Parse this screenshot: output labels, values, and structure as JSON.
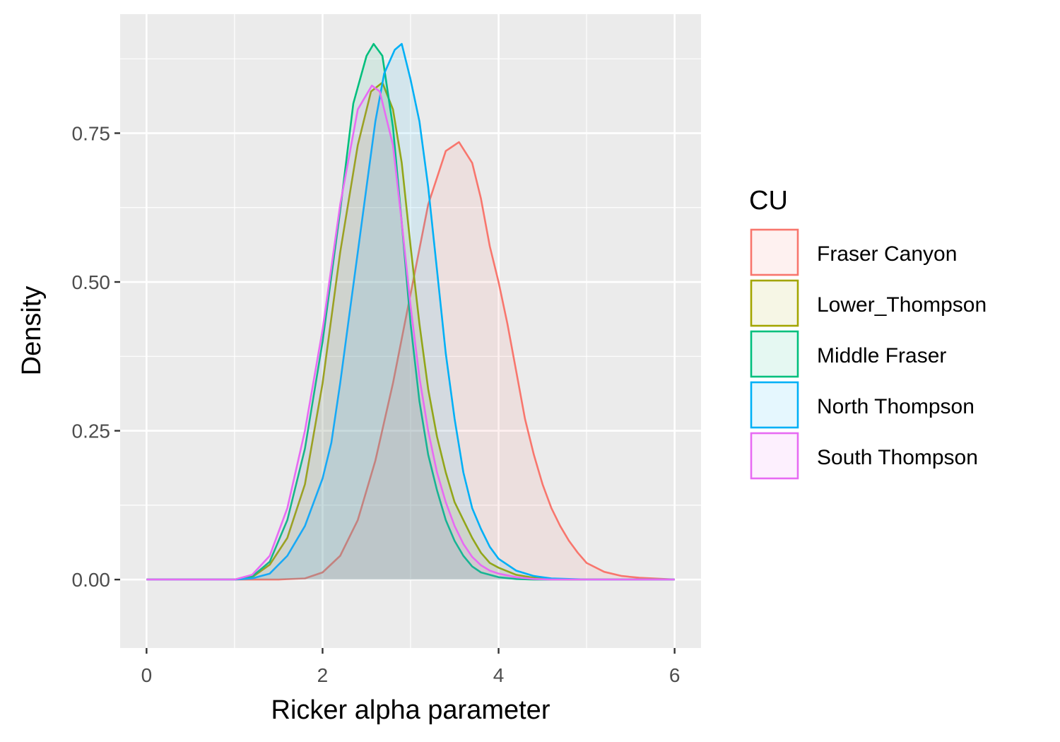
{
  "chart_data": {
    "type": "area",
    "title": "",
    "xlabel": "Ricker alpha parameter",
    "ylabel": "Density",
    "xlim": [
      -0.3,
      6.3
    ],
    "ylim": [
      -0.115,
      0.95
    ],
    "x_ticks": [
      0,
      2,
      4,
      6
    ],
    "x_tick_labels": [
      "0",
      "2",
      "4",
      "6"
    ],
    "y_ticks": [
      0,
      0.25,
      0.5,
      0.75
    ],
    "y_tick_labels": [
      "0.00",
      "0.25",
      "0.50",
      "0.75"
    ],
    "grid": true,
    "legend": {
      "title": "CU",
      "position": "right"
    },
    "series": [
      {
        "name": "Fraser Canyon",
        "color": "#F8766D",
        "points": [
          [
            0,
            0
          ],
          [
            1.5,
            0
          ],
          [
            1.8,
            0.002
          ],
          [
            2,
            0.012
          ],
          [
            2.2,
            0.04
          ],
          [
            2.4,
            0.1
          ],
          [
            2.6,
            0.2
          ],
          [
            2.8,
            0.33
          ],
          [
            3,
            0.48
          ],
          [
            3.2,
            0.63
          ],
          [
            3.4,
            0.72
          ],
          [
            3.55,
            0.735
          ],
          [
            3.7,
            0.7
          ],
          [
            3.8,
            0.64
          ],
          [
            3.9,
            0.56
          ],
          [
            4,
            0.5
          ],
          [
            4.1,
            0.43
          ],
          [
            4.2,
            0.35
          ],
          [
            4.3,
            0.27
          ],
          [
            4.4,
            0.21
          ],
          [
            4.5,
            0.16
          ],
          [
            4.6,
            0.12
          ],
          [
            4.7,
            0.09
          ],
          [
            4.8,
            0.065
          ],
          [
            4.9,
            0.045
          ],
          [
            5,
            0.028
          ],
          [
            5.2,
            0.013
          ],
          [
            5.4,
            0.006
          ],
          [
            5.6,
            0.003
          ],
          [
            6,
            0
          ]
        ]
      },
      {
        "name": "Lower_Thompson",
        "color": "#A3A500",
        "points": [
          [
            0,
            0
          ],
          [
            1,
            0
          ],
          [
            1.2,
            0.004
          ],
          [
            1.4,
            0.025
          ],
          [
            1.6,
            0.07
          ],
          [
            1.8,
            0.16
          ],
          [
            2,
            0.33
          ],
          [
            2.2,
            0.55
          ],
          [
            2.4,
            0.73
          ],
          [
            2.55,
            0.82
          ],
          [
            2.68,
            0.835
          ],
          [
            2.8,
            0.79
          ],
          [
            2.9,
            0.7
          ],
          [
            3,
            0.56
          ],
          [
            3.1,
            0.43
          ],
          [
            3.2,
            0.32
          ],
          [
            3.3,
            0.24
          ],
          [
            3.4,
            0.18
          ],
          [
            3.5,
            0.13
          ],
          [
            3.6,
            0.1
          ],
          [
            3.7,
            0.07
          ],
          [
            3.8,
            0.045
          ],
          [
            3.9,
            0.028
          ],
          [
            4,
            0.02
          ],
          [
            4.2,
            0.008
          ],
          [
            4.4,
            0.003
          ],
          [
            4.6,
            0.001
          ],
          [
            4.8,
            0
          ],
          [
            6,
            0
          ]
        ]
      },
      {
        "name": "Middle Fraser",
        "color": "#00BF7D",
        "points": [
          [
            0,
            0
          ],
          [
            1,
            0
          ],
          [
            1.2,
            0.005
          ],
          [
            1.4,
            0.03
          ],
          [
            1.6,
            0.1
          ],
          [
            1.8,
            0.22
          ],
          [
            2,
            0.4
          ],
          [
            2.2,
            0.62
          ],
          [
            2.35,
            0.8
          ],
          [
            2.5,
            0.88
          ],
          [
            2.58,
            0.9
          ],
          [
            2.68,
            0.88
          ],
          [
            2.8,
            0.76
          ],
          [
            2.9,
            0.6
          ],
          [
            3,
            0.43
          ],
          [
            3.1,
            0.3
          ],
          [
            3.2,
            0.21
          ],
          [
            3.3,
            0.15
          ],
          [
            3.4,
            0.1
          ],
          [
            3.5,
            0.065
          ],
          [
            3.6,
            0.04
          ],
          [
            3.7,
            0.022
          ],
          [
            3.8,
            0.012
          ],
          [
            4,
            0.004
          ],
          [
            4.2,
            0.001
          ],
          [
            4.4,
            0
          ],
          [
            6,
            0
          ]
        ]
      },
      {
        "name": "North Thompson",
        "color": "#00B0F6",
        "points": [
          [
            0,
            0
          ],
          [
            1,
            0
          ],
          [
            1.2,
            0.002
          ],
          [
            1.4,
            0.01
          ],
          [
            1.6,
            0.04
          ],
          [
            1.8,
            0.09
          ],
          [
            2,
            0.17
          ],
          [
            2.1,
            0.23
          ],
          [
            2.2,
            0.33
          ],
          [
            2.3,
            0.44
          ],
          [
            2.4,
            0.55
          ],
          [
            2.5,
            0.66
          ],
          [
            2.6,
            0.77
          ],
          [
            2.7,
            0.85
          ],
          [
            2.82,
            0.89
          ],
          [
            2.9,
            0.9
          ],
          [
            3,
            0.84
          ],
          [
            3.1,
            0.77
          ],
          [
            3.2,
            0.66
          ],
          [
            3.3,
            0.52
          ],
          [
            3.4,
            0.38
          ],
          [
            3.5,
            0.27
          ],
          [
            3.6,
            0.18
          ],
          [
            3.7,
            0.12
          ],
          [
            3.8,
            0.085
          ],
          [
            3.9,
            0.055
          ],
          [
            4,
            0.035
          ],
          [
            4.2,
            0.015
          ],
          [
            4.4,
            0.006
          ],
          [
            4.6,
            0.002
          ],
          [
            4.8,
            0.001
          ],
          [
            5,
            0
          ],
          [
            6,
            0
          ]
        ]
      },
      {
        "name": "South Thompson",
        "color": "#E76BF3",
        "points": [
          [
            0,
            0
          ],
          [
            1,
            0
          ],
          [
            1.2,
            0.008
          ],
          [
            1.4,
            0.04
          ],
          [
            1.6,
            0.12
          ],
          [
            1.8,
            0.25
          ],
          [
            2,
            0.42
          ],
          [
            2.2,
            0.63
          ],
          [
            2.4,
            0.79
          ],
          [
            2.56,
            0.83
          ],
          [
            2.65,
            0.82
          ],
          [
            2.8,
            0.73
          ],
          [
            2.9,
            0.6
          ],
          [
            3,
            0.46
          ],
          [
            3.1,
            0.34
          ],
          [
            3.2,
            0.25
          ],
          [
            3.3,
            0.18
          ],
          [
            3.4,
            0.13
          ],
          [
            3.5,
            0.09
          ],
          [
            3.6,
            0.06
          ],
          [
            3.7,
            0.038
          ],
          [
            3.8,
            0.024
          ],
          [
            3.9,
            0.015
          ],
          [
            4,
            0.01
          ],
          [
            4.2,
            0.004
          ],
          [
            4.4,
            0.001
          ],
          [
            4.6,
            0
          ],
          [
            6,
            0
          ]
        ]
      }
    ]
  }
}
